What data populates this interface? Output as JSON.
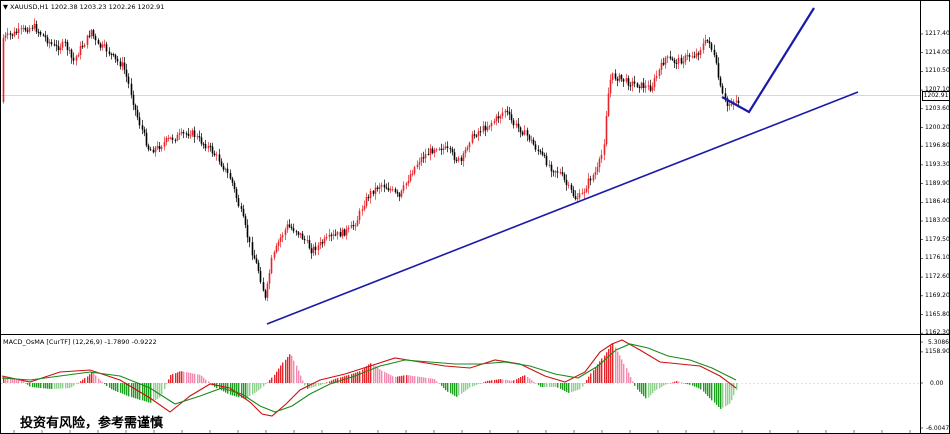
{
  "chart": {
    "symbol_header": "XAUUSD,H1  1202.38 1203.23 1202.26 1202.91",
    "current_price_label": "1202.91",
    "price_axis_labels": [
      "1217.40",
      "1214.00",
      "1210.50",
      "1207.10",
      "1203.60",
      "1200.20",
      "1196.80",
      "1193.30",
      "1189.90",
      "1186.40",
      "1183.00",
      "1179.50",
      "1176.10",
      "1172.60",
      "1169.20",
      "1165.80",
      "1162.30",
      "1158.90"
    ],
    "indicator_header": "MACD_OsMA [CurTF] (12,26,9) -1.7890 -0.9222",
    "indicator_axis_labels": [
      "5.3086",
      "0.00",
      "-6.0047"
    ],
    "risk_notice": "投资有风险，参考需谨慎"
  },
  "colors": {
    "bull_candle": "#e8242a",
    "bear_candle": "#000000",
    "trendline": "#1a1aa8",
    "osma_up": "#e8242a",
    "osma_up_light": "#f28ab0",
    "osma_down": "#1e9e1e",
    "osma_down_light": "#8ed08e",
    "macd_line": "#cc1010",
    "signal_line": "#1a8a1a"
  }
}
